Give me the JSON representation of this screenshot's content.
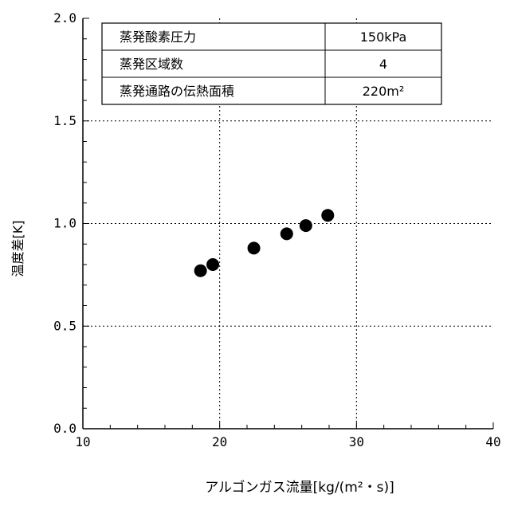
{
  "chart_data": {
    "type": "scatter",
    "xlabel": "アルゴンガス流量[kg/(m²・s)]",
    "ylabel": "温度差[K]",
    "xlim": [
      10,
      40
    ],
    "ylim": [
      0.0,
      2.0
    ],
    "x_ticks": [
      "10",
      "20",
      "30",
      "40"
    ],
    "y_ticks": [
      "0.0",
      "0.5",
      "1.0",
      "1.5",
      "2.0"
    ],
    "grid": "dotted at x=20, x=30, y=0.5, y=1.0, y=1.5",
    "series": [
      {
        "points": [
          {
            "x": 18.6,
            "y": 0.77
          },
          {
            "x": 19.5,
            "y": 0.8
          },
          {
            "x": 22.5,
            "y": 0.88
          },
          {
            "x": 24.9,
            "y": 0.95
          },
          {
            "x": 26.3,
            "y": 0.99
          },
          {
            "x": 27.9,
            "y": 1.04
          }
        ]
      }
    ],
    "table": {
      "rows": [
        {
          "label": "蒸発酸素圧力",
          "value": "150kPa"
        },
        {
          "label": "蒸発区域数",
          "value": "4"
        },
        {
          "label": "蒸発通路の伝熱面積",
          "value": "220m²"
        }
      ]
    }
  }
}
